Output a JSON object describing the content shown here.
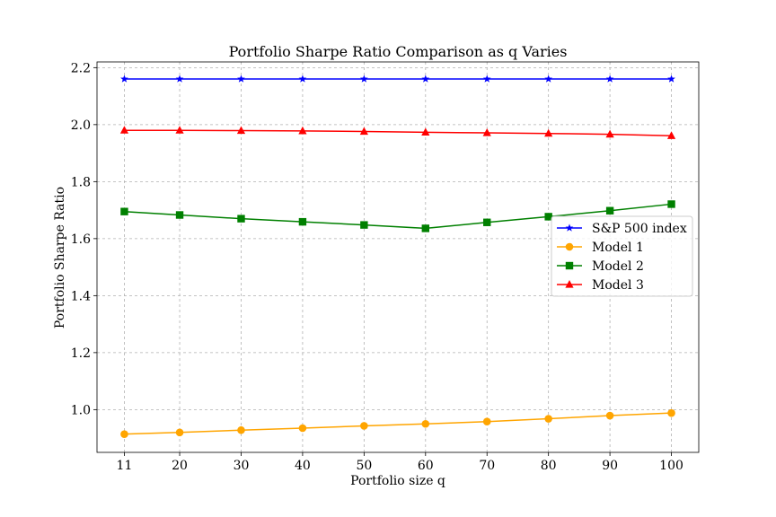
{
  "chart_data": {
    "type": "line",
    "title": "Portfolio Sharpe Ratio Comparison as q Varies",
    "xlabel": "Portfolio size q",
    "ylabel": "Portfolio Sharpe Ratio",
    "x": [
      11,
      20,
      30,
      40,
      50,
      60,
      70,
      80,
      90,
      100
    ],
    "x_tick_labels": [
      "11",
      "20",
      "30",
      "40",
      "50",
      "60",
      "70",
      "80",
      "90",
      "100"
    ],
    "y_ticks": [
      1.0,
      1.2,
      1.4,
      1.6,
      1.8,
      2.0,
      2.2
    ],
    "y_tick_labels": [
      "1.0",
      "1.2",
      "1.4",
      "1.6",
      "1.8",
      "2.0",
      "2.2"
    ],
    "ylim": [
      0.85,
      2.22
    ],
    "grid": true,
    "legend_position": "center-right",
    "series": [
      {
        "name": "S&P 500 index",
        "color": "#0000ff",
        "marker": "star",
        "values": [
          2.16,
          2.16,
          2.16,
          2.16,
          2.16,
          2.16,
          2.16,
          2.16,
          2.16,
          2.16
        ]
      },
      {
        "name": "Model 1",
        "color": "#ffa500",
        "marker": "circle",
        "values": [
          0.914,
          0.92,
          0.928,
          0.935,
          0.943,
          0.95,
          0.958,
          0.968,
          0.979,
          0.988
        ]
      },
      {
        "name": "Model 2",
        "color": "#008000",
        "marker": "square",
        "values": [
          1.695,
          1.683,
          1.67,
          1.659,
          1.648,
          1.636,
          1.657,
          1.677,
          1.698,
          1.721
        ]
      },
      {
        "name": "Model 3",
        "color": "#ff0000",
        "marker": "triangle",
        "values": [
          1.98,
          1.98,
          1.979,
          1.978,
          1.976,
          1.973,
          1.971,
          1.969,
          1.966,
          1.961
        ]
      }
    ]
  }
}
